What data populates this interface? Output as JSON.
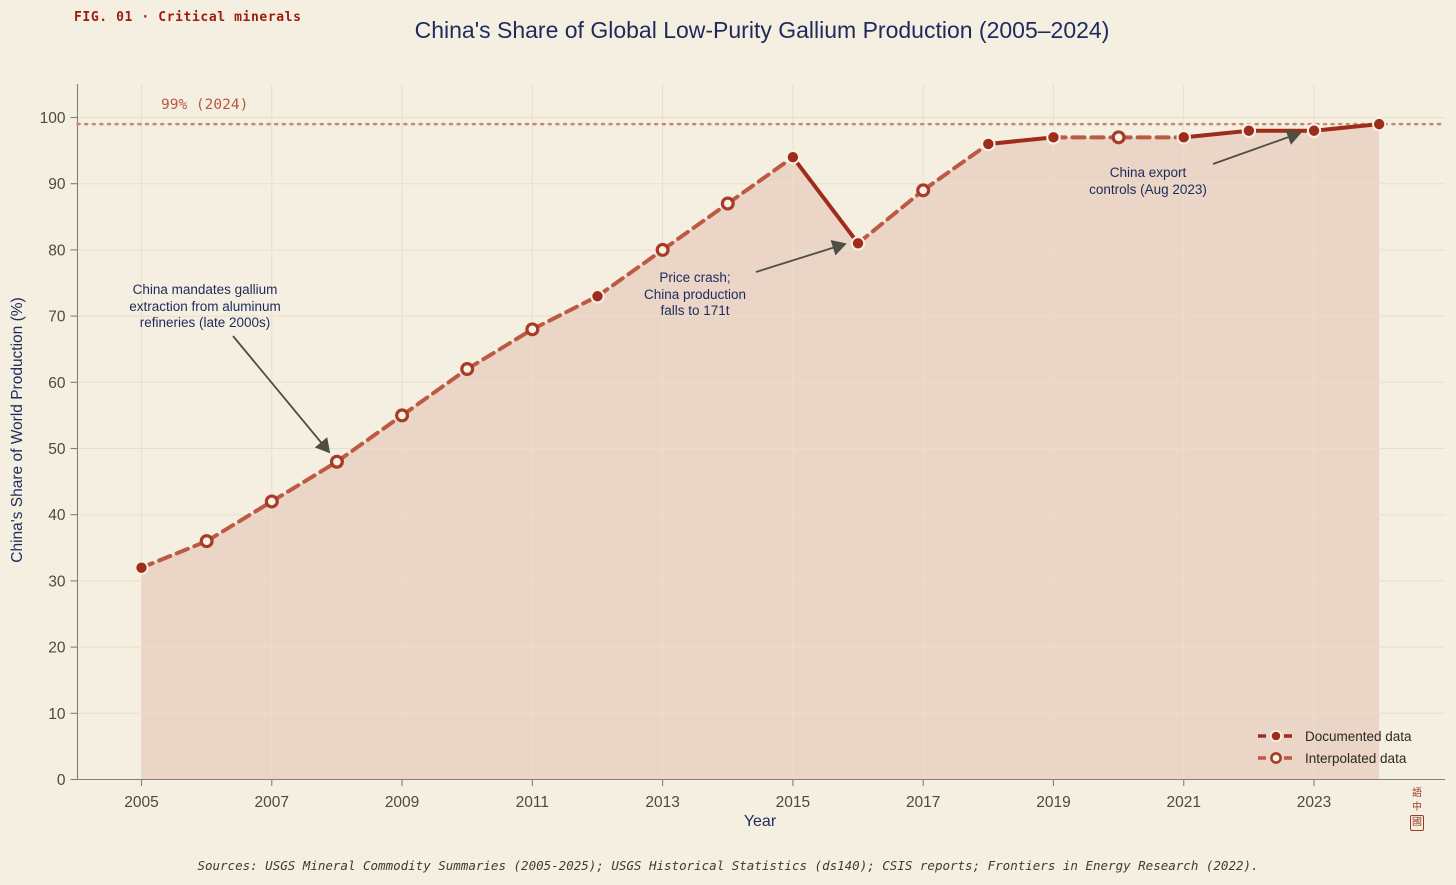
{
  "figure": {
    "fig_label": "FIG. 01 · Critical minerals",
    "title": "China's Share of Global Low-Purity Gallium Production (2005–2024)",
    "source_note": "Sources: USGS Mineral Commodity Summaries (2005-2025); USGS Historical Statistics (ds140); CSIS reports; Frontiers in Energy Research (2022).",
    "seal_chars": [
      "語",
      "中",
      "國"
    ]
  },
  "chart_data": {
    "type": "line",
    "title": "China's Share of Global Low-Purity Gallium Production (2005–2024)",
    "xlabel": "Year",
    "ylabel": "China's Share of World Production (%)",
    "x": [
      2005,
      2006,
      2007,
      2008,
      2009,
      2010,
      2011,
      2012,
      2013,
      2014,
      2015,
      2016,
      2017,
      2018,
      2019,
      2020,
      2021,
      2022,
      2023,
      2024
    ],
    "series": [
      {
        "name": "China share of world production (%)",
        "values": [
          32,
          36,
          42,
          48,
          55,
          62,
          68,
          73,
          80,
          87,
          94,
          81,
          89,
          96,
          97,
          97,
          97,
          98,
          98,
          99
        ],
        "status": [
          "documented",
          "interpolated",
          "interpolated",
          "interpolated",
          "interpolated",
          "interpolated",
          "interpolated",
          "documented",
          "interpolated",
          "interpolated",
          "documented",
          "documented",
          "interpolated",
          "documented",
          "documented",
          "interpolated",
          "documented",
          "documented",
          "documented",
          "documented"
        ]
      }
    ],
    "ylim": [
      0,
      100
    ],
    "xlim": [
      2004,
      2025
    ],
    "yticks": [
      0,
      10,
      20,
      30,
      40,
      50,
      60,
      70,
      80,
      90,
      100
    ],
    "xticks": [
      2005,
      2007,
      2009,
      2011,
      2013,
      2015,
      2017,
      2019,
      2021,
      2023
    ],
    "grid": "on",
    "area_fill": true,
    "reference_line": {
      "value": 99,
      "label": "99% (2024)"
    },
    "annotations": [
      {
        "text": "China mandates gallium\nextraction from aluminum\nrefineries (late 2000s)",
        "target_year": 2008,
        "target_value": 48
      },
      {
        "text": "Price crash;\nChina production\nfalls to 171t",
        "target_year": 2016,
        "target_value": 81
      },
      {
        "text": "China export\ncontrols (Aug 2023)",
        "target_year": 2023,
        "target_value": 98
      }
    ],
    "legend": [
      {
        "label": "Documented data",
        "style": "documented"
      },
      {
        "label": "Interpolated data",
        "style": "interpolated"
      }
    ],
    "legend_position": "lower right",
    "colors": {
      "background": "#f5efe2",
      "documented": "#9f2c1b",
      "interpolated": "#bc5a43",
      "interpolated_ring": "#a63b27",
      "marker_halo": "#f8f2e5",
      "area": "rgba(197,124,98,0.22)",
      "grid": "#e9dfc9",
      "spine": "#82806f",
      "reference": "#cb8872",
      "reference_label": "#b55a40",
      "arrow": "#4e4e44",
      "navy": "#1d2b5c",
      "tick_text": "#4b4a41"
    }
  }
}
